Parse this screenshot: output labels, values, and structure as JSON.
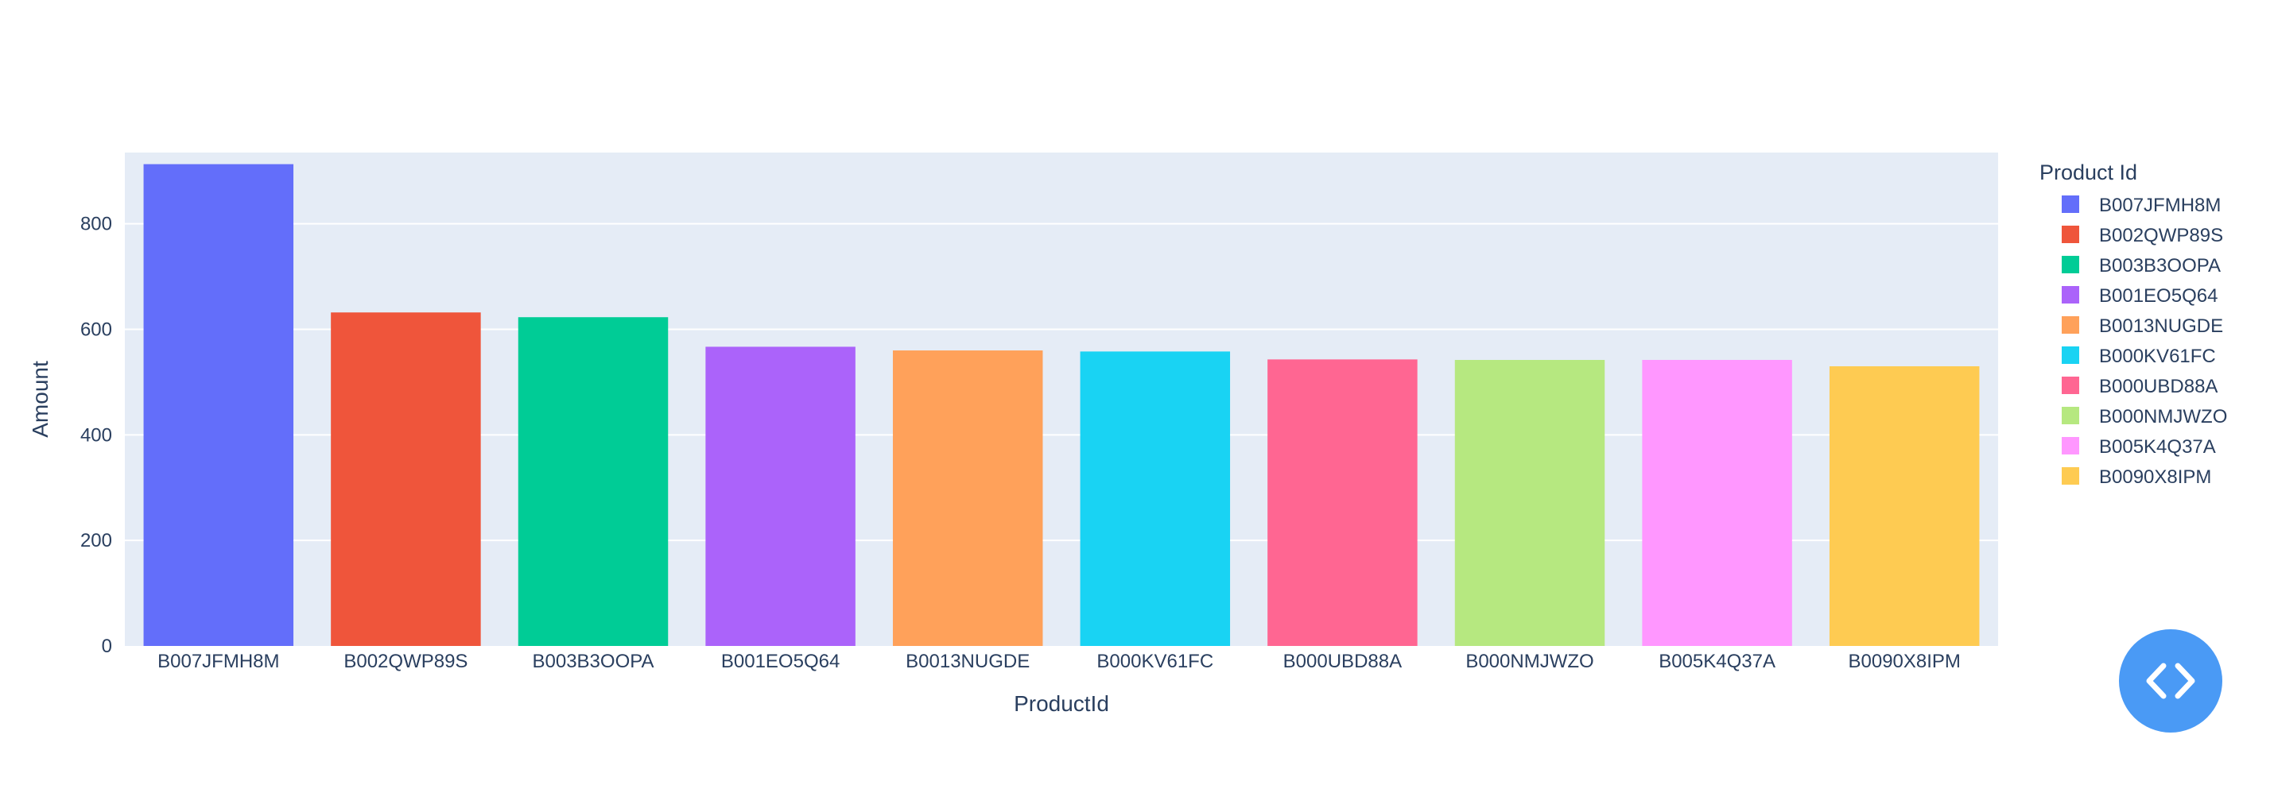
{
  "chart_data": {
    "type": "bar",
    "title": "",
    "xlabel": "ProductId",
    "ylabel": "Amount",
    "ylim": [
      0,
      935
    ],
    "yticks": [
      0,
      200,
      400,
      600,
      800
    ],
    "grid": true,
    "legend_title": "Product Id",
    "legend_position": "right",
    "categories": [
      "B007JFMH8M",
      "B002QWP89S",
      "B003B3OOPA",
      "B001EO5Q64",
      "B0013NUGDE",
      "B000KV61FC",
      "B000UBD88A",
      "B000NMJWZO",
      "B005K4Q37A",
      "B0090X8IPM"
    ],
    "values": [
      913,
      632,
      623,
      567,
      560,
      558,
      543,
      542,
      542,
      530
    ],
    "colors": [
      "#636efa",
      "#EF553B",
      "#00cc96",
      "#ab63fa",
      "#FFA15A",
      "#19d3f3",
      "#FF6692",
      "#B6E880",
      "#FF97FF",
      "#FECB52"
    ]
  },
  "colors": {
    "plot_background": "#E5ECF6",
    "grid": "#ffffff",
    "text": "#2a3f5f",
    "code_button": "#4a9af5"
  },
  "code_button": {
    "icon": "code-brackets-icon"
  }
}
